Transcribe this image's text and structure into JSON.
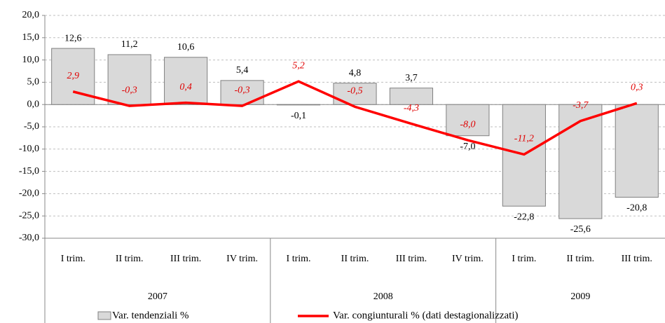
{
  "chart_data": {
    "type": "bar-line",
    "categories": [
      "I trim.",
      "II trim.",
      "III trim.",
      "IV trim.",
      "I trim.",
      "II trim.",
      "III trim.",
      "IV trim.",
      "I trim.",
      "II trim.",
      "III trim."
    ],
    "groups": [
      "2007",
      "2008",
      "2009"
    ],
    "series": [
      {
        "name": "Var. tendenziali %",
        "type": "bar",
        "color": "#d9d9d9",
        "values": [
          12.6,
          11.2,
          10.6,
          5.4,
          -0.1,
          4.8,
          3.7,
          -7.0,
          -22.8,
          -25.6,
          -20.8
        ],
        "value_labels": [
          "12,6",
          "11,2",
          "10,6",
          "5,4",
          "-0,1",
          "4,8",
          "3,7",
          "-7,0",
          "-22,8",
          "-25,6",
          "-20,8"
        ]
      },
      {
        "name": "Var. congiunturali % (dati destagionalizzati)",
        "type": "line",
        "color": "#ff0000",
        "values": [
          2.9,
          -0.3,
          0.4,
          -0.3,
          5.2,
          -0.5,
          -4.3,
          -8.0,
          -11.2,
          -3.7,
          0.3
        ],
        "value_labels": [
          "2,9",
          "-0,3",
          "0,4",
          "-0,3",
          "5,2",
          "-0,5",
          "-4,3",
          "-8,0",
          "-11,2",
          "-3,7",
          "0,3"
        ]
      }
    ],
    "ylim": [
      -30,
      20
    ],
    "yticks": [
      {
        "value": -30,
        "label": "-30,0"
      },
      {
        "value": -25,
        "label": "-25,0"
      },
      {
        "value": -20,
        "label": "-20,0"
      },
      {
        "value": -15,
        "label": "-15,0"
      },
      {
        "value": -10,
        "label": "-10,0"
      },
      {
        "value": -5,
        "label": "-5,0"
      },
      {
        "value": 0,
        "label": "0,0"
      },
      {
        "value": 5,
        "label": "5,0"
      },
      {
        "value": 10,
        "label": "10,0"
      },
      {
        "value": 15,
        "label": "15,0"
      },
      {
        "value": 20,
        "label": "20,0"
      }
    ],
    "grid": true,
    "legend": "bottom"
  }
}
